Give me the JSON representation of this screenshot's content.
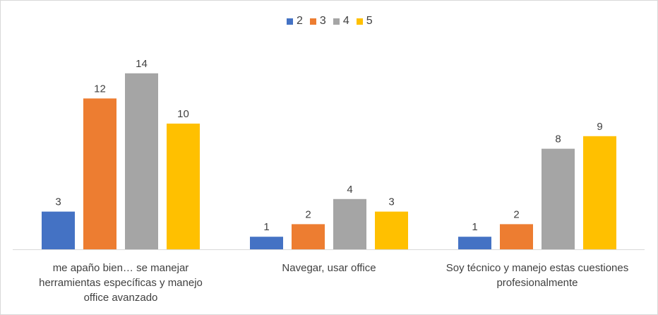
{
  "chart_data": {
    "type": "bar",
    "categories": [
      "me apaño bien… se manejar\nherramientas específicas y manejo\noffice avanzado",
      "Navegar, usar office",
      "Soy técnico y manejo estas cuestiones\nprofesionalmente"
    ],
    "series": [
      {
        "name": "2",
        "color": "#4472c4",
        "values": [
          3,
          1,
          1
        ]
      },
      {
        "name": "3",
        "color": "#ed7d31",
        "values": [
          12,
          2,
          2
        ]
      },
      {
        "name": "4",
        "color": "#a5a5a5",
        "values": [
          14,
          4,
          8
        ]
      },
      {
        "name": "5",
        "color": "#ffc000",
        "values": [
          10,
          3,
          9
        ]
      }
    ],
    "title": "",
    "xlabel": "",
    "ylabel": "",
    "ylim": [
      0,
      14
    ],
    "grid": false,
    "data_labels": true,
    "legend_position": "top"
  }
}
